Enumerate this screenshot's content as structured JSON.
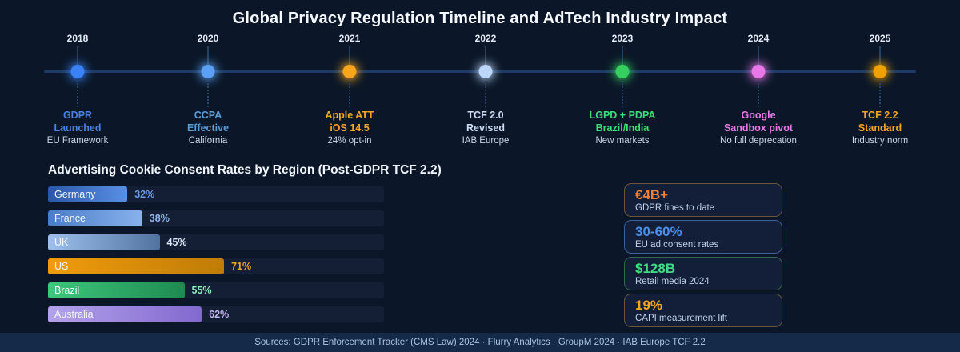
{
  "header": {
    "title": "Global Privacy Regulation Timeline and AdTech Industry Impact"
  },
  "timeline": {
    "events": [
      {
        "year": "2018",
        "title": "GDPR\nLaunched",
        "description": "EU Framework",
        "colors": {
          "dot": "#3b82f6",
          "title": "#4a80e0"
        }
      },
      {
        "year": "2020",
        "title": "CCPA\nEffective",
        "description": "California",
        "colors": {
          "dot": "#5ba0f5",
          "title": "#5b9bd5"
        }
      },
      {
        "year": "2021",
        "title": "Apple ATT\niOS 14.5",
        "description": "24% opt-in",
        "colors": {
          "dot": "#f6a51c",
          "title": "#f5a623"
        }
      },
      {
        "year": "2022",
        "title": "TCF 2.0\nRevised",
        "description": "IAB Europe",
        "colors": {
          "dot": "#bcd6f8",
          "title": "#ccdaf4"
        }
      },
      {
        "year": "2023",
        "title": "LGPD + PDPA\nBrazil/India",
        "description": "New markets",
        "colors": {
          "dot": "#35cf5f",
          "title": "#3ddc78"
        }
      },
      {
        "year": "2024",
        "title": "Google\nSandbox pivot",
        "description": "No full deprecation",
        "colors": {
          "dot": "#e878e8",
          "title": "#e87ae8"
        }
      },
      {
        "year": "2025",
        "title": "TCF 2.2\nStandard",
        "description": "Industry norm",
        "colors": {
          "dot": "#f0a000",
          "title": "#f0a623"
        }
      }
    ]
  },
  "chart_data": {
    "type": "bar",
    "orientation": "horizontal",
    "title": "Advertising Cookie Consent Rates by Region (Post-GDPR TCF 2.2)",
    "categories": [
      "Germany",
      "France",
      "UK",
      "US",
      "Brazil",
      "Australia"
    ],
    "values": [
      32,
      38,
      45,
      71,
      55,
      62
    ],
    "data_labels": [
      "32%",
      "38%",
      "45%",
      "71%",
      "55%",
      "62%"
    ],
    "unit": "%",
    "xlim": [
      0,
      100
    ],
    "grid": false,
    "legend": false,
    "bar_colors": [
      {
        "c1": "#2b57a8",
        "c2": "#5890e5",
        "val": "#6b9be0"
      },
      {
        "c1": "#4a7cc8",
        "c2": "#88b2ec",
        "val": "#8fb4e8"
      },
      {
        "c1": "#9dc1ec",
        "c2": "#52729f",
        "val": "#dce8f8"
      },
      {
        "c1": "#f09c0c",
        "c2": "#c07c06",
        "val": "#f5a623"
      },
      {
        "c1": "#3dc87c",
        "c2": "#1f8a50",
        "val": "#8ee8b8"
      },
      {
        "c1": "#b3a2ea",
        "c2": "#8269cf",
        "val": "#c4b4f2"
      }
    ]
  },
  "stats": {
    "cards": [
      {
        "value": "€4B+",
        "label": "GDPR fines to date",
        "colors": {
          "val": "#f08033",
          "border": "#6b5638"
        }
      },
      {
        "value": "30-60%",
        "label": "EU ad consent rates",
        "colors": {
          "val": "#4a8fe8",
          "border": "#3c5f9a"
        }
      },
      {
        "value": "$128B",
        "label": "Retail media 2024",
        "colors": {
          "val": "#3ddc84",
          "border": "#35674f"
        }
      },
      {
        "value": "19%",
        "label": "CAPI measurement lift",
        "colors": {
          "val": "#f5a623",
          "border": "#6b5638"
        }
      }
    ]
  },
  "footer": {
    "sources": "Sources: GDPR Enforcement Tracker (CMS Law) 2024 · Flurry Analytics · GroupM 2024 · IAB Europe TCF 2.2"
  }
}
